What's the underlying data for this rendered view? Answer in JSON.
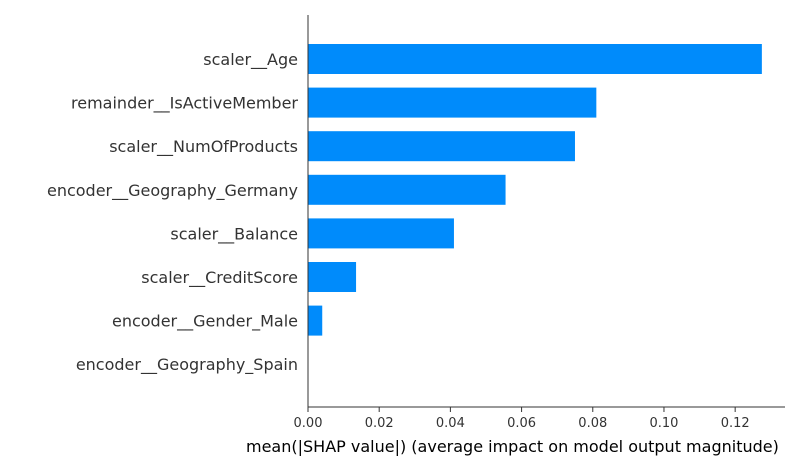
{
  "chart_data": {
    "type": "bar",
    "orientation": "horizontal",
    "categories": [
      "scaler__Age",
      "remainder__IsActiveMember",
      "scaler__NumOfProducts",
      "encoder__Geography_Germany",
      "scaler__Balance",
      "scaler__CreditScore",
      "encoder__Gender_Male",
      "encoder__Geography_Spain"
    ],
    "values": [
      0.1275,
      0.081,
      0.075,
      0.0555,
      0.041,
      0.0135,
      0.004,
      0.0
    ],
    "xlabel": "mean(|SHAP value|) (average impact on model output magnitude)",
    "ylabel": "",
    "title": "",
    "xlim": [
      0,
      0.134
    ],
    "xticks": [
      0.0,
      0.02,
      0.04,
      0.06,
      0.08,
      0.1,
      0.12
    ],
    "xtick_labels": [
      "0.00",
      "0.02",
      "0.04",
      "0.06",
      "0.08",
      "0.10",
      "0.12"
    ],
    "grid": false,
    "bar_color": "#008bfb"
  }
}
